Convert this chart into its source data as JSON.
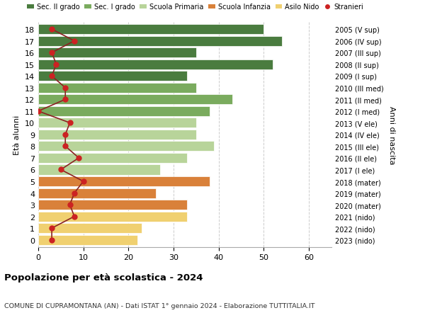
{
  "ages": [
    18,
    17,
    16,
    15,
    14,
    13,
    12,
    11,
    10,
    9,
    8,
    7,
    6,
    5,
    4,
    3,
    2,
    1,
    0
  ],
  "right_labels": [
    "2005 (V sup)",
    "2006 (IV sup)",
    "2007 (III sup)",
    "2008 (II sup)",
    "2009 (I sup)",
    "2010 (III med)",
    "2011 (II med)",
    "2012 (I med)",
    "2013 (V ele)",
    "2014 (IV ele)",
    "2015 (III ele)",
    "2016 (II ele)",
    "2017 (I ele)",
    "2018 (mater)",
    "2019 (mater)",
    "2020 (mater)",
    "2021 (nido)",
    "2022 (nido)",
    "2023 (nido)"
  ],
  "bar_values": [
    50,
    54,
    35,
    52,
    33,
    35,
    43,
    38,
    35,
    35,
    39,
    33,
    27,
    38,
    26,
    33,
    33,
    23,
    22
  ],
  "bar_colors": [
    "#4a7c3f",
    "#4a7c3f",
    "#4a7c3f",
    "#4a7c3f",
    "#4a7c3f",
    "#7aab5e",
    "#7aab5e",
    "#7aab5e",
    "#b8d49a",
    "#b8d49a",
    "#b8d49a",
    "#b8d49a",
    "#b8d49a",
    "#d9813a",
    "#d9813a",
    "#d9813a",
    "#f0d070",
    "#f0d070",
    "#f0d070"
  ],
  "stranieri_values": [
    3,
    8,
    3,
    4,
    3,
    6,
    6,
    0,
    7,
    6,
    6,
    9,
    5,
    10,
    8,
    7,
    8,
    3,
    3
  ],
  "ylabel_left": "Età alunni",
  "ylabel_right": "Anni di nascita",
  "title": "Popolazione per età scolastica - 2024",
  "subtitle": "COMUNE DI CUPRAMONTANA (AN) - Dati ISTAT 1° gennaio 2024 - Elaborazione TUTTITALIA.IT",
  "xlim": [
    0,
    65
  ],
  "legend_labels": [
    "Sec. II grado",
    "Sec. I grado",
    "Scuola Primaria",
    "Scuola Infanzia",
    "Asilo Nido",
    "Stranieri"
  ],
  "legend_colors": [
    "#4a7c3f",
    "#7aab5e",
    "#b8d49a",
    "#d9813a",
    "#f0d070",
    "#cc2222"
  ],
  "bg_color": "#ffffff",
  "grid_color": "#cccccc",
  "stranieri_color": "#cc2222",
  "stranieri_line_color": "#8b2222"
}
